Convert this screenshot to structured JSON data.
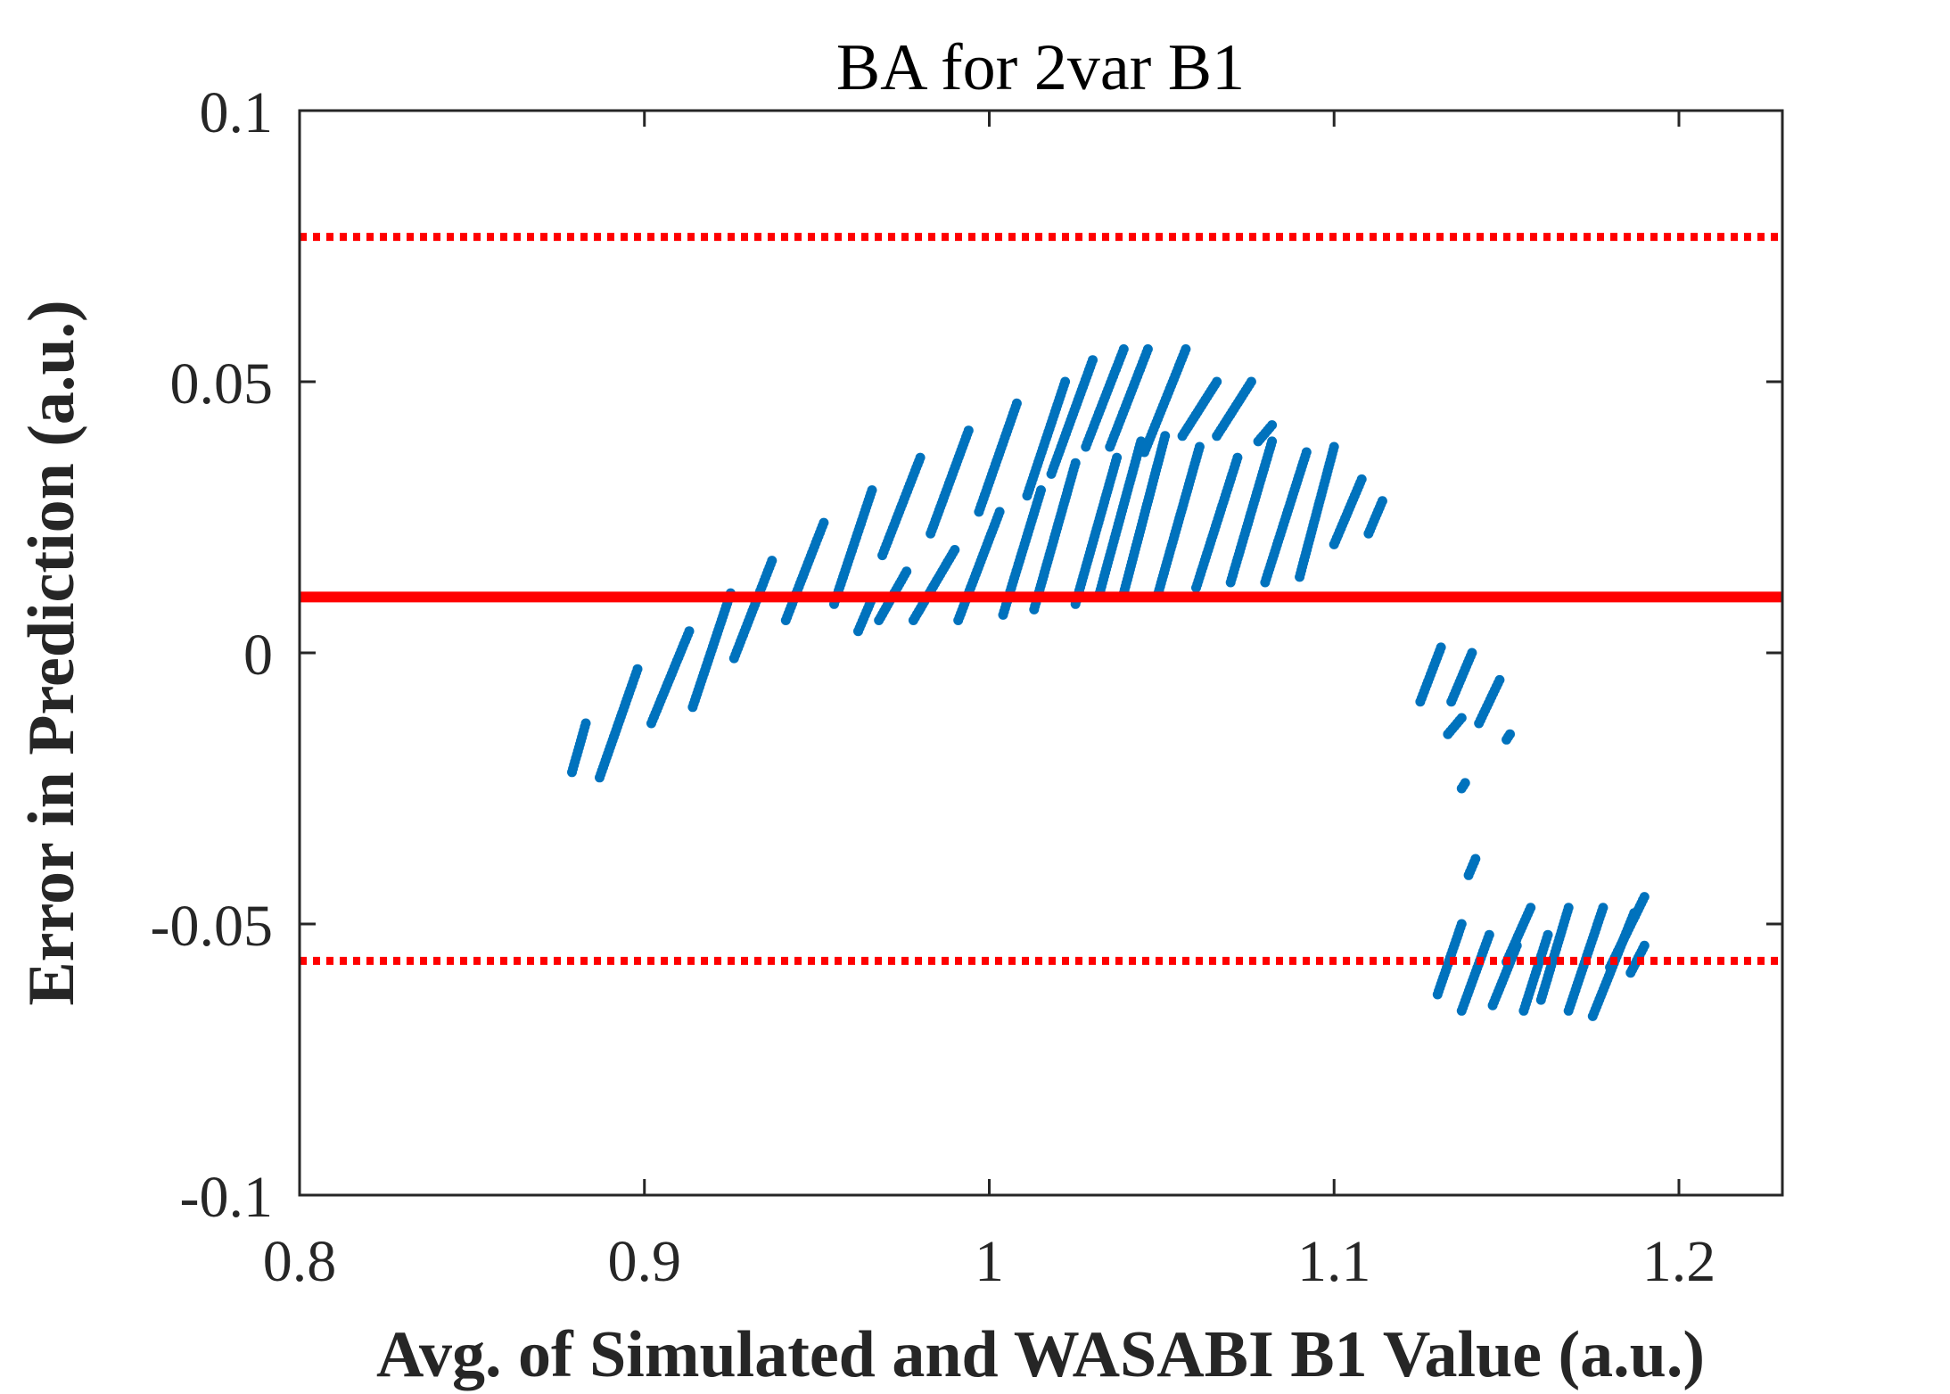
{
  "chart_data": {
    "type": "scatter",
    "title": "BA for 2var B1",
    "xlabel": "Avg. of Simulated and WASABI B1 Value (a.u.)",
    "ylabel": "Error in Prediction (a.u.)",
    "xlim": [
      0.8,
      1.23
    ],
    "ylim": [
      -0.1,
      0.1
    ],
    "xticks": [
      "0.8",
      "0.9",
      "1",
      "1.1",
      "1.2"
    ],
    "yticks": [
      "-0.1",
      "-0.05",
      "0",
      "0.05",
      "0.1"
    ],
    "xtick_values": [
      0.8,
      0.9,
      1.0,
      1.1,
      1.2
    ],
    "ytick_values": [
      -0.1,
      -0.05,
      0,
      0.05,
      0.1
    ],
    "grid": false,
    "reference_lines": [
      {
        "kind": "mean",
        "y": 0.0103,
        "style": "solid",
        "color": "#ff0000"
      },
      {
        "kind": "upper_limit",
        "y": 0.0767,
        "style": "dotted",
        "color": "#ff0000"
      },
      {
        "kind": "lower_limit",
        "y": -0.0568,
        "style": "dotted",
        "color": "#ff0000"
      }
    ],
    "point_color": "#0072bd",
    "point_segments": [
      {
        "x": [
          0.879,
          0.883
        ],
        "y": [
          -0.022,
          -0.013
        ]
      },
      {
        "x": [
          0.887,
          0.898
        ],
        "y": [
          -0.023,
          -0.003
        ]
      },
      {
        "x": [
          0.902,
          0.913
        ],
        "y": [
          -0.013,
          0.004
        ]
      },
      {
        "x": [
          0.914,
          0.925
        ],
        "y": [
          -0.01,
          0.011
        ]
      },
      {
        "x": [
          0.926,
          0.937
        ],
        "y": [
          -0.001,
          0.017
        ]
      },
      {
        "x": [
          0.941,
          0.952
        ],
        "y": [
          0.006,
          0.024
        ]
      },
      {
        "x": [
          0.955,
          0.966
        ],
        "y": [
          0.009,
          0.03
        ]
      },
      {
        "x": [
          0.962,
          0.966
        ],
        "y": [
          0.004,
          0.01
        ]
      },
      {
        "x": [
          0.968,
          0.976
        ],
        "y": [
          0.006,
          0.015
        ]
      },
      {
        "x": [
          0.969,
          0.98
        ],
        "y": [
          0.018,
          0.036
        ]
      },
      {
        "x": [
          0.978,
          0.99
        ],
        "y": [
          0.006,
          0.019
        ]
      },
      {
        "x": [
          0.983,
          0.994
        ],
        "y": [
          0.022,
          0.041
        ]
      },
      {
        "x": [
          0.991,
          1.003
        ],
        "y": [
          0.006,
          0.026
        ]
      },
      {
        "x": [
          0.997,
          1.008
        ],
        "y": [
          0.026,
          0.046
        ]
      },
      {
        "x": [
          1.004,
          1.015
        ],
        "y": [
          0.007,
          0.03
        ]
      },
      {
        "x": [
          1.011,
          1.022
        ],
        "y": [
          0.029,
          0.05
        ]
      },
      {
        "x": [
          1.013,
          1.025
        ],
        "y": [
          0.008,
          0.035
        ]
      },
      {
        "x": [
          1.018,
          1.03
        ],
        "y": [
          0.033,
          0.054
        ]
      },
      {
        "x": [
          1.025,
          1.037
        ],
        "y": [
          0.009,
          0.036
        ]
      },
      {
        "x": [
          1.028,
          1.039
        ],
        "y": [
          0.038,
          0.056
        ]
      },
      {
        "x": [
          1.032,
          1.044
        ],
        "y": [
          0.011,
          0.039
        ]
      },
      {
        "x": [
          1.035,
          1.046
        ],
        "y": [
          0.038,
          0.056
        ]
      },
      {
        "x": [
          1.039,
          1.051
        ],
        "y": [
          0.011,
          0.04
        ]
      },
      {
        "x": [
          1.045,
          1.057
        ],
        "y": [
          0.037,
          0.056
        ]
      },
      {
        "x": [
          1.049,
          1.061
        ],
        "y": [
          0.011,
          0.038
        ]
      },
      {
        "x": [
          1.056,
          1.066
        ],
        "y": [
          0.04,
          0.05
        ]
      },
      {
        "x": [
          1.06,
          1.072
        ],
        "y": [
          0.012,
          0.036
        ]
      },
      {
        "x": [
          1.066,
          1.076
        ],
        "y": [
          0.04,
          0.05
        ]
      },
      {
        "x": [
          1.07,
          1.082
        ],
        "y": [
          0.013,
          0.039
        ]
      },
      {
        "x": [
          1.078,
          1.082
        ],
        "y": [
          0.039,
          0.042
        ]
      },
      {
        "x": [
          1.08,
          1.092
        ],
        "y": [
          0.013,
          0.037
        ]
      },
      {
        "x": [
          1.09,
          1.1
        ],
        "y": [
          0.014,
          0.038
        ]
      },
      {
        "x": [
          1.1,
          1.108
        ],
        "y": [
          0.02,
          0.032
        ]
      },
      {
        "x": [
          1.11,
          1.114
        ],
        "y": [
          0.022,
          0.028
        ]
      },
      {
        "x": [
          1.125,
          1.131
        ],
        "y": [
          -0.009,
          0.001
        ]
      },
      {
        "x": [
          1.133,
          1.137
        ],
        "y": [
          -0.015,
          -0.012
        ]
      },
      {
        "x": [
          1.134,
          1.14
        ],
        "y": [
          -0.009,
          0.0
        ]
      },
      {
        "x": [
          1.137,
          1.138
        ],
        "y": [
          -0.025,
          -0.024
        ]
      },
      {
        "x": [
          1.142,
          1.148
        ],
        "y": [
          -0.013,
          -0.005
        ]
      },
      {
        "x": [
          1.15,
          1.151
        ],
        "y": [
          -0.016,
          -0.015
        ]
      },
      {
        "x": [
          1.139,
          1.141
        ],
        "y": [
          -0.041,
          -0.038
        ]
      },
      {
        "x": [
          1.13,
          1.137
        ],
        "y": [
          -0.063,
          -0.05
        ]
      },
      {
        "x": [
          1.137,
          1.145
        ],
        "y": [
          -0.066,
          -0.052
        ]
      },
      {
        "x": [
          1.146,
          1.153
        ],
        "y": [
          -0.065,
          -0.054
        ]
      },
      {
        "x": [
          1.15,
          1.157
        ],
        "y": [
          -0.057,
          -0.047
        ]
      },
      {
        "x": [
          1.155,
          1.162
        ],
        "y": [
          -0.066,
          -0.052
        ]
      },
      {
        "x": [
          1.16,
          1.168
        ],
        "y": [
          -0.064,
          -0.047
        ]
      },
      {
        "x": [
          1.168,
          1.178
        ],
        "y": [
          -0.066,
          -0.047
        ]
      },
      {
        "x": [
          1.175,
          1.187
        ],
        "y": [
          -0.067,
          -0.048
        ]
      },
      {
        "x": [
          1.18,
          1.19
        ],
        "y": [
          -0.058,
          -0.045
        ]
      },
      {
        "x": [
          1.186,
          1.19
        ],
        "y": [
          -0.059,
          -0.054
        ]
      }
    ]
  }
}
